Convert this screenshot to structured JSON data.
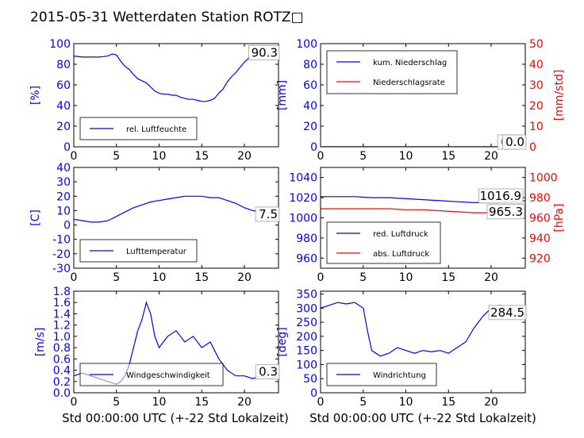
{
  "title": "2015-05-31 Wetterdaten Station ROTZ□",
  "colors": {
    "primary": "#0000ff",
    "secondary": "#ff0000",
    "frame": "#000000"
  },
  "x_axis_label": "Std 00:00:00 UTC (+-22 Std Lokalzeit)",
  "chart_data": [
    {
      "id": "humidity",
      "type": "line",
      "ylabel": "[%]",
      "xlim": [
        0,
        24
      ],
      "ylim": [
        0,
        100
      ],
      "yticks": [
        0,
        20,
        40,
        60,
        80,
        100
      ],
      "xticks": [
        0,
        5,
        10,
        15,
        20
      ],
      "legend_placement": "lower-left",
      "last_value": "90.3",
      "series": [
        {
          "name": "rel. Luftfeuchte",
          "color": "#0000ff",
          "x": [
            0,
            1,
            2,
            3,
            4,
            4.5,
            5,
            5.5,
            6,
            6.5,
            7,
            7.5,
            8,
            8.5,
            9,
            9.5,
            10,
            10.5,
            11,
            11.5,
            12,
            12.5,
            13,
            13.5,
            14,
            14.5,
            15,
            15.5,
            16,
            16.5,
            17,
            17.5,
            18,
            18.5,
            19,
            19.5,
            20,
            20.5,
            21,
            22,
            23,
            24
          ],
          "y": [
            88,
            87,
            87,
            87,
            88,
            90,
            89,
            83,
            78,
            75,
            70,
            66,
            64,
            62,
            58,
            54,
            52,
            51,
            51,
            50,
            50,
            48,
            47,
            46,
            46,
            45,
            44,
            44,
            45,
            47,
            52,
            56,
            63,
            68,
            72,
            77,
            82,
            86,
            88,
            89,
            90,
            90
          ]
        }
      ]
    },
    {
      "id": "precipitation",
      "type": "line",
      "ylabel": "[mm]",
      "y2label": "[mm/std]",
      "xlim": [
        0,
        24
      ],
      "ylim": [
        0,
        100
      ],
      "y2lim": [
        0,
        50
      ],
      "yticks": [
        0,
        20,
        40,
        60,
        80,
        100
      ],
      "y2ticks": [
        0,
        10,
        20,
        30,
        40,
        50
      ],
      "xticks": [
        0,
        5,
        10,
        15,
        20
      ],
      "legend_placement": "upper-left",
      "value_labels": [
        "0.0",
        "0.0"
      ],
      "series": [
        {
          "name": "kum. Niederschlag",
          "color": "#0000ff",
          "axis": "left",
          "x": [
            0,
            24
          ],
          "y": [
            0,
            0
          ]
        },
        {
          "name": "Niederschlagsrate",
          "color": "#ff0000",
          "axis": "right",
          "x": [
            0,
            24
          ],
          "y": [
            0,
            0
          ]
        }
      ]
    },
    {
      "id": "temperature",
      "type": "line",
      "ylabel": "[C]",
      "xlim": [
        0,
        24
      ],
      "ylim": [
        -30,
        40
      ],
      "yticks": [
        -30,
        -20,
        -10,
        0,
        10,
        20,
        30,
        40
      ],
      "xticks": [
        0,
        5,
        10,
        15,
        20
      ],
      "legend_placement": "lower-left",
      "last_value": "7.5",
      "series": [
        {
          "name": "Lufttemperatur",
          "color": "#0000ff",
          "x": [
            0,
            1,
            2,
            3,
            4,
            5,
            6,
            7,
            8,
            9,
            10,
            11,
            12,
            13,
            14,
            15,
            16,
            17,
            18,
            19,
            20,
            21,
            22,
            23,
            24
          ],
          "y": [
            4,
            3,
            2,
            2,
            3,
            6,
            9,
            12,
            14,
            16,
            17,
            18,
            19,
            20,
            20,
            20,
            19,
            19,
            17,
            15,
            12,
            10,
            9,
            8,
            7.5
          ]
        }
      ]
    },
    {
      "id": "pressure",
      "type": "line",
      "ylabel": "",
      "y2label": "[hPa]",
      "xlim": [
        0,
        24
      ],
      "ylim": [
        950,
        1050
      ],
      "y2lim": [
        910,
        1010
      ],
      "yticks": [
        960,
        980,
        1000,
        1020,
        1040
      ],
      "y2ticks": [
        920,
        940,
        960,
        980,
        1000
      ],
      "xticks": [
        0,
        5,
        10,
        15,
        20
      ],
      "legend_placement": "lower-left",
      "value_labels": [
        "1016.9",
        "965.3"
      ],
      "series": [
        {
          "name": "red. Luftdruck",
          "color": "#0000ff",
          "axis": "left",
          "x": [
            0,
            2,
            4,
            6,
            8,
            10,
            12,
            14,
            16,
            18,
            20,
            22,
            24
          ],
          "y": [
            1021,
            1021,
            1021,
            1020,
            1020,
            1019,
            1018,
            1017,
            1016,
            1015,
            1015,
            1016,
            1017
          ]
        },
        {
          "name": "abs. Luftdruck",
          "color": "#ff0000",
          "axis": "right",
          "x": [
            0,
            2,
            4,
            6,
            8,
            10,
            12,
            14,
            16,
            18,
            20,
            22,
            24
          ],
          "y": [
            969,
            969,
            969,
            969,
            969,
            968,
            968,
            967,
            966,
            965,
            965,
            965,
            965
          ]
        }
      ]
    },
    {
      "id": "windspeed",
      "type": "line",
      "ylabel": "[m/s]",
      "xlim": [
        0,
        24
      ],
      "ylim": [
        0,
        1.8
      ],
      "yticks": [
        0.0,
        0.2,
        0.4,
        0.6,
        0.8,
        1.0,
        1.2,
        1.4,
        1.6,
        1.8
      ],
      "xticks": [
        0,
        5,
        10,
        15,
        20
      ],
      "legend_placement": "lower-left",
      "last_value": "0.3",
      "series": [
        {
          "name": "Windgeschwindigkeit",
          "color": "#0000ff",
          "x": [
            0,
            1,
            2,
            3,
            4,
            5,
            5.5,
            6,
            6.5,
            7,
            7.5,
            8,
            8.5,
            9,
            9.5,
            10,
            11,
            12,
            13,
            14,
            15,
            16,
            17,
            18,
            19,
            20,
            21,
            22,
            23,
            24
          ],
          "y": [
            0.3,
            0.35,
            0.3,
            0.25,
            0.2,
            0.15,
            0.2,
            0.3,
            0.5,
            0.8,
            1.1,
            1.3,
            1.6,
            1.4,
            1.0,
            0.8,
            1.0,
            1.1,
            0.9,
            1.0,
            0.8,
            0.9,
            0.6,
            0.4,
            0.3,
            0.3,
            0.25,
            0.3,
            0.25,
            0.3
          ]
        }
      ]
    },
    {
      "id": "winddirection",
      "type": "line",
      "ylabel": "[deg]",
      "xlim": [
        0,
        24
      ],
      "ylim": [
        0,
        360
      ],
      "yticks": [
        0,
        50,
        100,
        150,
        200,
        250,
        300,
        350
      ],
      "xticks": [
        0,
        5,
        10,
        15,
        20
      ],
      "legend_placement": "lower-left",
      "last_value": "284.5",
      "series": [
        {
          "name": "Windrichtung",
          "color": "#0000ff",
          "x": [
            0,
            1,
            2,
            3,
            4,
            5,
            5.5,
            6,
            7,
            8,
            9,
            10,
            11,
            12,
            13,
            14,
            15,
            16,
            17,
            18,
            19,
            20,
            21,
            22,
            23,
            24
          ],
          "y": [
            300,
            310,
            320,
            315,
            320,
            300,
            220,
            150,
            130,
            140,
            160,
            150,
            140,
            150,
            145,
            150,
            140,
            160,
            180,
            230,
            270,
            300,
            310,
            300,
            290,
            285
          ]
        }
      ]
    }
  ]
}
